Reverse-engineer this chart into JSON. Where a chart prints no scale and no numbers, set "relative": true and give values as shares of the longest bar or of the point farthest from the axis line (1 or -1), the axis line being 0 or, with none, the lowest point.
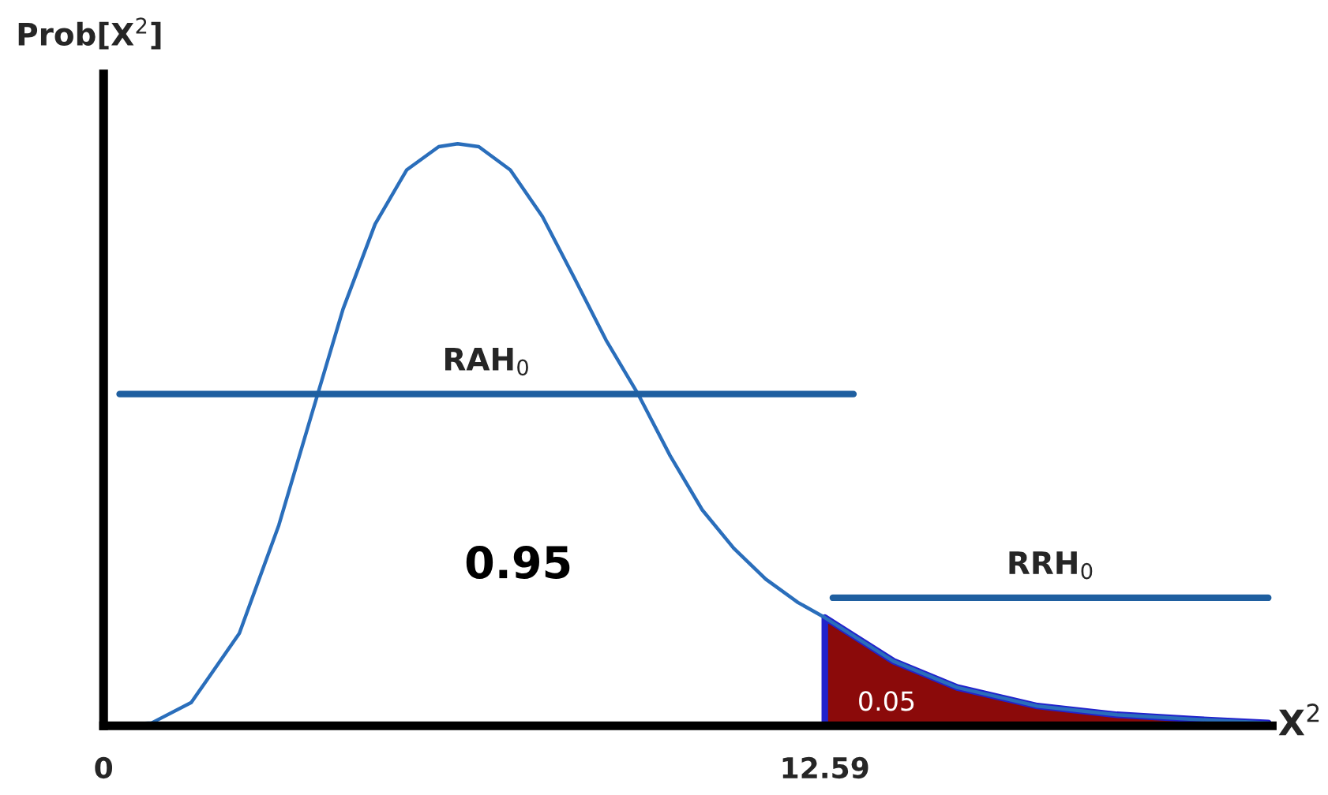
{
  "chart_data": {
    "type": "line",
    "relative": true,
    "xlabel": "X$^{2}$",
    "ylabel": "Prob[X$^{2}$]",
    "xlim": [
      0,
      20.4
    ],
    "xticks": [
      0,
      12.59
    ],
    "grid": false,
    "legend": false,
    "marker": "none",
    "line_style": "solid",
    "series": [
      {
        "color": "#2a6ebb",
        "x": [
          0,
          0.84,
          1.53,
          2.37,
          3.06,
          3.62,
          4.18,
          4.74,
          5.29,
          5.85,
          6.18,
          6.55,
          7.1,
          7.66,
          8.22,
          8.77,
          9.33,
          9.89,
          10.45,
          11.0,
          11.56,
          12.12,
          12.59,
          13.23,
          13.79,
          14.9,
          16.3,
          17.69,
          19.08,
          20.33
        ],
        "values": [
          0,
          0.005,
          0.04,
          0.159,
          0.345,
          0.531,
          0.716,
          0.862,
          0.955,
          0.995,
          1,
          0.995,
          0.955,
          0.875,
          0.769,
          0.663,
          0.57,
          0.464,
          0.371,
          0.305,
          0.252,
          0.212,
          0.186,
          0.146,
          0.111,
          0.066,
          0.034,
          0.019,
          0.011,
          0.005
        ]
      },
      {
        "type": "area",
        "color": "#8b0a0a",
        "x": [
          12.59,
          13.23,
          13.79,
          14.9,
          16.3,
          17.69,
          19.08,
          20.33
        ],
        "values": [
          0.186,
          0.146,
          0.111,
          0.066,
          0.034,
          0.019,
          0.011,
          0.005
        ]
      },
      {
        "name": "RAH$_{0}$",
        "color": "#1f5fa0",
        "x": [
          0.28,
          13.09
        ],
        "values": [
          0.57,
          0.57
        ]
      },
      {
        "name": "RRH$_{0}$",
        "color": "#1f5fa0",
        "x": [
          12.73,
          20.33
        ],
        "values": [
          0.22,
          0.22
        ]
      }
    ],
    "annotations": [
      "0.95",
      "0.05"
    ]
  }
}
